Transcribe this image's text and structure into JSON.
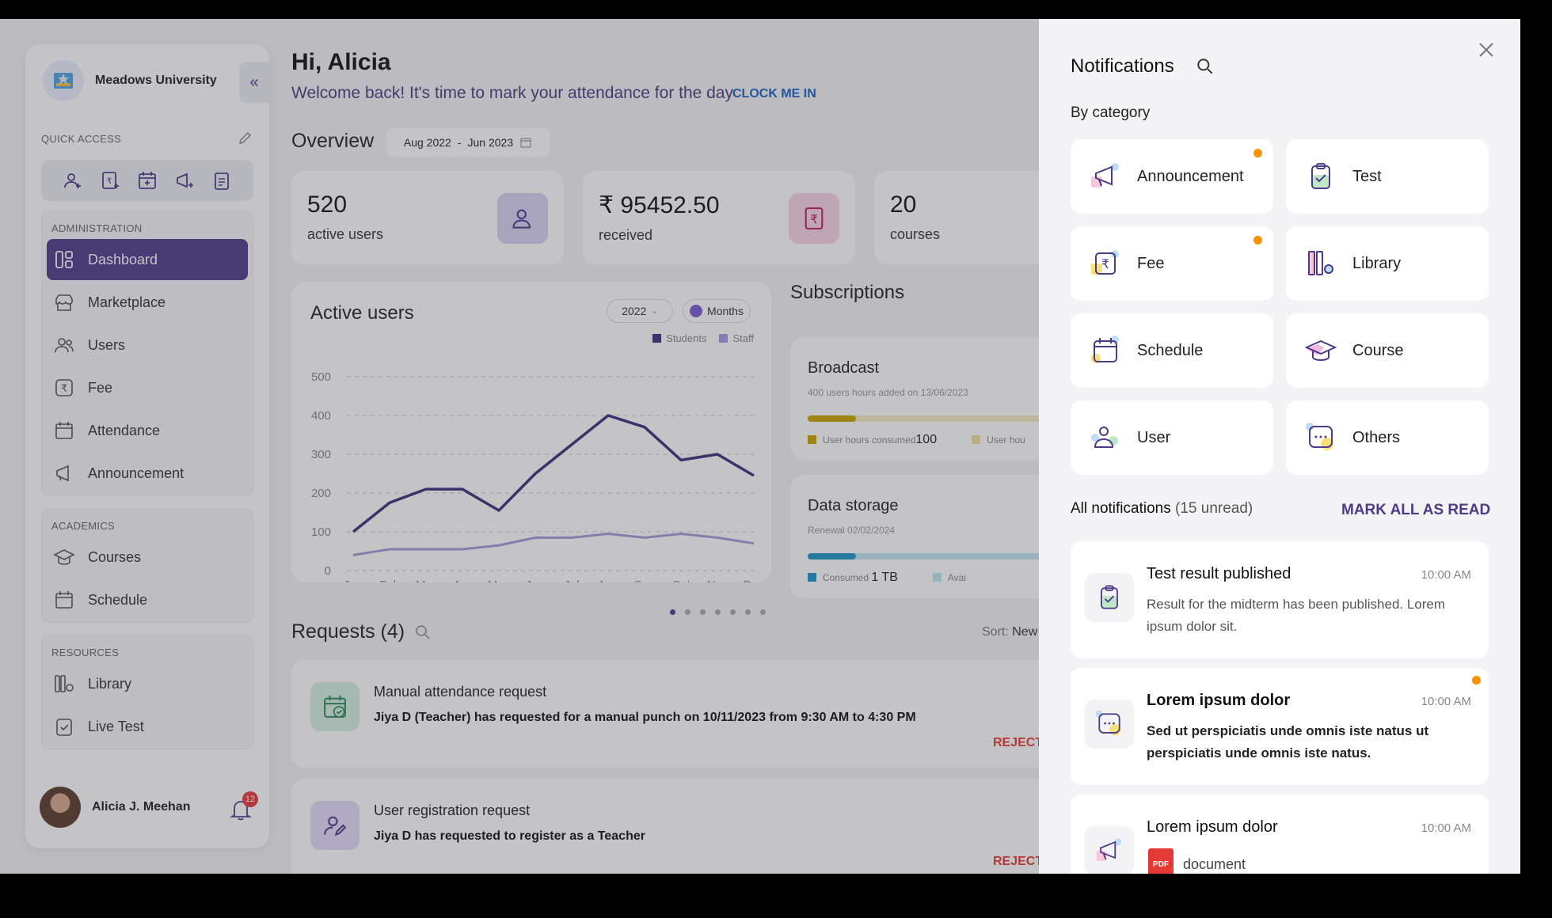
{
  "sidebar": {
    "university": "Meadows University",
    "quick_access_label": "QUICK ACCESS",
    "groups": [
      {
        "label": "ADMINISTRATION",
        "items": [
          "Dashboard",
          "Marketplace",
          "Users",
          "Fee",
          "Attendance",
          "Announcement"
        ]
      },
      {
        "label": "ACADEMICS",
        "items": [
          "Courses",
          "Schedule"
        ]
      },
      {
        "label": "RESOURCES",
        "items": [
          "Library",
          "Live Test"
        ]
      }
    ],
    "active_item": "Dashboard",
    "user_name": "Alicia J. Meehan",
    "notification_count": "12"
  },
  "header": {
    "greeting": "Hi, Alicia",
    "welcome": "Welcome back! It's time to mark your attendance for the day",
    "clock_in": "CLOCK ME IN"
  },
  "overview": {
    "title": "Overview",
    "date_from": "Aug 2022",
    "date_sep": "-",
    "date_to": "Jun 2023",
    "stats": [
      {
        "value": "520",
        "label": "active users"
      },
      {
        "value": "₹ 95452.50",
        "label": "received"
      },
      {
        "value": "20",
        "label": "courses"
      }
    ]
  },
  "active_users": {
    "title": "Active users",
    "year": "2022",
    "period": "Months",
    "legend": [
      "Students",
      "Staff"
    ]
  },
  "chart_data": {
    "type": "line",
    "title": "Active users",
    "categories": [
      "Jan",
      "Feb",
      "Mar",
      "Apr",
      "May",
      "Jun",
      "Jul",
      "Aug",
      "Sep",
      "Oct",
      "Nov",
      "Dec"
    ],
    "series": [
      {
        "name": "Students",
        "color": "#3d2f7a",
        "values": [
          100,
          175,
          210,
          210,
          155,
          250,
          325,
          400,
          370,
          285,
          300,
          245
        ]
      },
      {
        "name": "Staff",
        "color": "#a89ad8",
        "values": [
          40,
          55,
          55,
          55,
          65,
          85,
          85,
          95,
          85,
          95,
          85,
          70
        ]
      }
    ],
    "ylim": [
      0,
      500
    ],
    "yticks": [
      "0",
      "100",
      "200",
      "300",
      "400",
      "500"
    ],
    "grid": true,
    "legend_position": "top-right"
  },
  "subscriptions": {
    "title": "Subscriptions",
    "cards": [
      {
        "title": "Broadcast",
        "subtitle": "400 users hours added on 13/06/2023",
        "fill_color": "#c9a400",
        "track_color": "#f5ecc4",
        "fill_pct": 17,
        "legend1": "User hours consumed",
        "value1": "100",
        "legend2": "User hou",
        "legend2_color": "#f0dfa0"
      },
      {
        "title": "Data storage",
        "subtitle": "Renewal 02/02/2024",
        "fill_color": "#1e95c8",
        "track_color": "#c4e7f3",
        "fill_pct": 17,
        "legend1": "Consumed",
        "value1": "1 TB",
        "legend2": "Avai",
        "legend2_color": "#bfe2f2"
      }
    ]
  },
  "requests": {
    "title": "Requests (4)",
    "sort_label": "Sort:",
    "sort_value": "New",
    "items": [
      {
        "title": "Manual attendance request",
        "desc": "Jiya D (Teacher) has requested for a manual punch on 10/11/2023 from 9:30 AM to 4:30 PM",
        "reject": "REJECT"
      },
      {
        "title": "User registration request",
        "desc": "Jiya D has requested to register as a Teacher",
        "reject": "REJECT"
      }
    ]
  },
  "notifications": {
    "title": "Notifications",
    "by_category": "By category",
    "categories": [
      {
        "label": "Announcement",
        "unread": true
      },
      {
        "label": "Test",
        "unread": false
      },
      {
        "label": "Fee",
        "unread": true
      },
      {
        "label": "Library",
        "unread": false
      },
      {
        "label": "Schedule",
        "unread": false
      },
      {
        "label": "Course",
        "unread": false
      },
      {
        "label": "User",
        "unread": false
      },
      {
        "label": "Others",
        "unread": false
      }
    ],
    "all_label": "All notifications",
    "unread_label": "(15 unread)",
    "mark_all": "MARK ALL AS READ",
    "items": [
      {
        "title": "Test result published",
        "time": "10:00 AM",
        "body": "Result for the midterm has been published. Lorem ipsum dolor sit."
      },
      {
        "title": "Lorem ipsum dolor",
        "time": "10:00 AM",
        "body": "Sed ut perspiciatis unde omnis iste natus ut perspiciatis unde omnis iste natus."
      },
      {
        "title": "Lorem ipsum dolor",
        "time": "10:00 AM",
        "attachment": "document",
        "attachment_type": "PDF"
      }
    ]
  }
}
